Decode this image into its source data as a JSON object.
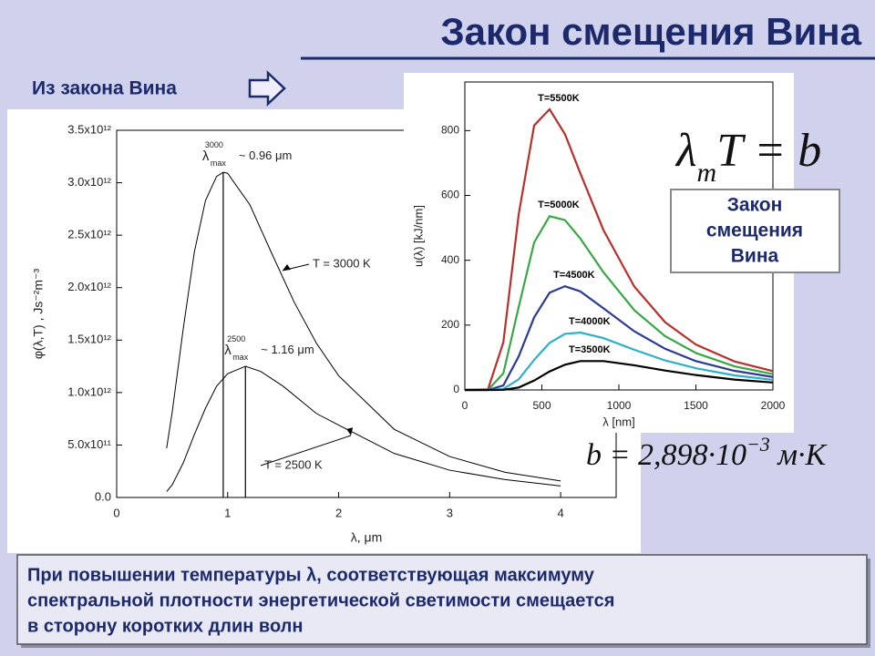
{
  "title": "Закон смещения Вина",
  "subtitle": "Из закона Вина",
  "chart_data": [
    {
      "type": "line",
      "x_label": "λ, μm",
      "y_label": "φ(λ,T) , Js⁻²m⁻³",
      "xlim": [
        0,
        4.5
      ],
      "ylim": [
        0,
        3500000000000.0
      ],
      "xticks": [
        0,
        1,
        2,
        3,
        4
      ],
      "yticks": [
        {
          "value": 0,
          "label": "0.0"
        },
        {
          "value": 500000000000.0,
          "label": "5.0x10¹¹"
        },
        {
          "value": 1000000000000.0,
          "label": "1.0x10¹²"
        },
        {
          "value": 1500000000000.0,
          "label": "1.5x10¹²"
        },
        {
          "value": 2000000000000.0,
          "label": "2.0x10¹²"
        },
        {
          "value": 2500000000000.0,
          "label": "2.5x10¹²"
        },
        {
          "value": 3000000000000.0,
          "label": "3.0x10¹²"
        },
        {
          "value": 3500000000000.0,
          "label": "3.5x10¹²"
        }
      ],
      "grid": false,
      "series": [
        {
          "name": "T = 3000 K",
          "color": "#000000",
          "x": [
            0.45,
            0.5,
            0.6,
            0.7,
            0.8,
            0.9,
            0.96,
            1.0,
            1.2,
            1.4,
            1.6,
            1.8,
            2.0,
            2.5,
            3.0,
            3.5,
            4.0
          ],
          "values": [
            470000000000.0,
            810000000000.0,
            1610000000000.0,
            2340000000000.0,
            2830000000000.0,
            3060000000000.0,
            3100000000000.0,
            3090000000000.0,
            2790000000000.0,
            2320000000000.0,
            1860000000000.0,
            1470000000000.0,
            1160000000000.0,
            650000000000.0,
            390000000000.0,
            240000000000.0,
            157000000000.0
          ]
        },
        {
          "name": "T = 2500 K",
          "color": "#000000",
          "x": [
            0.45,
            0.5,
            0.6,
            0.7,
            0.8,
            0.9,
            1.0,
            1.16,
            1.3,
            1.5,
            1.8,
            2.0,
            2.5,
            3.0,
            3.5,
            4.0
          ],
          "values": [
            56000000000.0,
            120000000000.0,
            330000000000.0,
            600000000000.0,
            850000000000.0,
            1060000000000.0,
            1180000000000.0,
            1250000000000.0,
            1200000000000.0,
            1060000000000.0,
            800000000000.0,
            690000000000.0,
            420000000000.0,
            260000000000.0,
            170000000000.0,
            110000000000.0
          ]
        }
      ],
      "annotations": [
        {
          "x": 0.96,
          "y": 3100000000000.0,
          "symbol": "λ",
          "sub": "max",
          "sup": "3000",
          "text": "~ 0.96 μm"
        },
        {
          "x": 1.16,
          "y": 1250000000000.0,
          "symbol": "λ",
          "sub": "max",
          "sup": "2500",
          "text": "~ 1.16 μm"
        }
      ]
    },
    {
      "type": "line",
      "x_label": "λ [nm]",
      "y_label": "u(λ) [kJ/nm]",
      "xlim": [
        0,
        2000
      ],
      "ylim": [
        0,
        950
      ],
      "xticks": [
        0,
        500,
        1000,
        1500,
        2000
      ],
      "yticks": [
        0,
        200,
        400,
        600,
        800
      ],
      "grid": false,
      "x": [
        0,
        150,
        250,
        350,
        450,
        550,
        650,
        750,
        900,
        1100,
        1300,
        1500,
        1750,
        2000
      ],
      "series": [
        {
          "name": "T=5500K",
          "color": "#b8302c",
          "values": [
            0,
            1.8,
            147,
            543,
            816,
            866,
            789,
            668,
            493,
            319,
            209,
            140,
            88,
            58
          ]
        },
        {
          "name": "T=5000K",
          "color": "#38a845",
          "values": [
            0,
            0.3,
            51,
            257,
            455,
            536,
            524,
            467,
            363,
            246,
            166,
            114,
            73,
            49
          ]
        },
        {
          "name": "T=4500K",
          "color": "#2b3a96",
          "values": [
            0,
            0,
            14,
            104,
            224,
            300,
            320,
            304,
            252,
            181,
            127,
            89,
            59,
            40
          ]
        },
        {
          "name": "T=4000K",
          "color": "#2cb0c8",
          "values": [
            0,
            0,
            2.9,
            33,
            93,
            145,
            173,
            177,
            160,
            124,
            91,
            67,
            45,
            31
          ]
        },
        {
          "name": "T=3500K",
          "color": "#000000",
          "values": [
            0,
            0,
            0.4,
            7.6,
            29,
            57,
            78,
            89,
            89,
            76,
            60,
            46,
            32,
            23
          ]
        }
      ]
    }
  ],
  "formula_law": {
    "symbol": "λ",
    "sub": "m",
    "text": "T = b"
  },
  "box_text": [
    "Закон",
    "смещения",
    "Вина"
  ],
  "formula_constant": {
    "text": "b = 2,898·10",
    "sup": "−3",
    "unit": " м·K"
  },
  "conclusion": [
    "При повышении температуры λ, соответствующая максимуму",
    "спектральной плотности энергетической светимости  смещается",
    "в сторону коротких длин волн"
  ]
}
